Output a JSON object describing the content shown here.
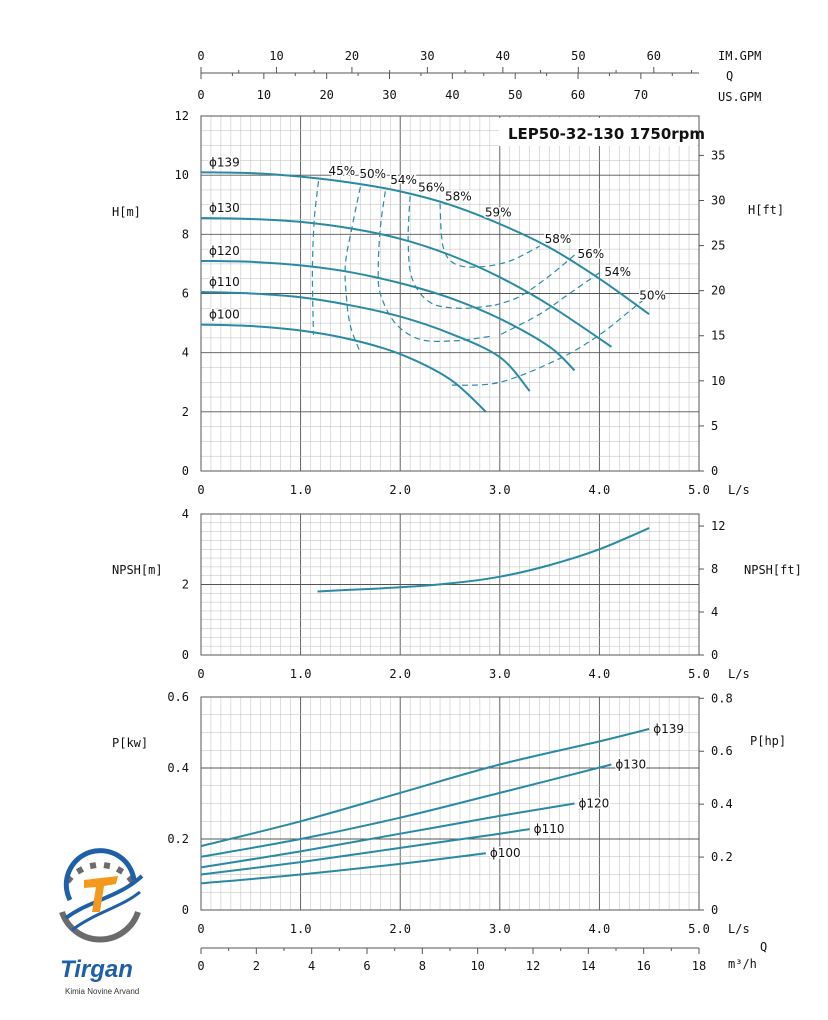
{
  "page": {
    "title": "LEP50-32-130 1750rpm"
  },
  "colors": {
    "curve": "#2a8aa3",
    "grid_major": "#555555",
    "grid_minor": "#bbbbbb",
    "text": "#111111",
    "logo_blue": "#1f5fa8",
    "logo_orange": "#f39a1e",
    "logo_gray": "#6b6b6b"
  },
  "logo": {
    "name": "Tirgan",
    "subtitle": "Kimia Novine Arvand",
    "icon": "gear-wave-logo-icon"
  },
  "top_axes": {
    "im_gpm": {
      "label": "IM.GPM",
      "ticks": [
        "0",
        "10",
        "20",
        "30",
        "40",
        "50",
        "60"
      ]
    },
    "q_label": "Q",
    "us_gpm": {
      "label": "US.GPM",
      "ticks": [
        "0",
        "10",
        "20",
        "30",
        "40",
        "50",
        "60",
        "70"
      ]
    }
  },
  "bottom_axes": {
    "ls": {
      "label": "L/s",
      "ticks": [
        "0",
        "1.0",
        "2.0",
        "3.0",
        "4.0",
        "5.0"
      ]
    },
    "q_label": "Q",
    "m3h": {
      "label": "m³/h",
      "ticks": [
        "0",
        "2",
        "4",
        "6",
        "8",
        "10",
        "12",
        "14",
        "16",
        "18"
      ]
    }
  },
  "chart_data": [
    {
      "type": "line",
      "title": "LEP50-32-130 1750rpm",
      "xlabel": "L/s",
      "ylabel": "H[m]",
      "ylabel_right": "H[ft]",
      "xlim": [
        0,
        5
      ],
      "ylim": [
        0,
        12
      ],
      "ylim_right": [
        0,
        39.37
      ],
      "xticks": [
        "0",
        "1.0",
        "2.0",
        "3.0",
        "4.0",
        "5.0"
      ],
      "yticks": [
        "0",
        "2",
        "4",
        "6",
        "8",
        "10",
        "12"
      ],
      "yticks_right": [
        "0",
        "5",
        "10",
        "15",
        "20",
        "25",
        "30",
        "35"
      ],
      "grid": true,
      "series": [
        {
          "name": "ϕ139",
          "x": [
            0,
            0.5,
            1.0,
            1.5,
            2.0,
            2.5,
            3.0,
            3.5,
            4.0,
            4.5
          ],
          "y": [
            10.1,
            10.07,
            9.95,
            9.75,
            9.45,
            9.0,
            8.35,
            7.55,
            6.5,
            5.3
          ]
        },
        {
          "name": "ϕ130",
          "x": [
            0,
            0.5,
            1.0,
            1.5,
            2.0,
            2.5,
            3.0,
            3.5,
            4.12
          ],
          "y": [
            8.55,
            8.52,
            8.42,
            8.2,
            7.85,
            7.3,
            6.55,
            5.6,
            4.2
          ]
        },
        {
          "name": "ϕ120",
          "x": [
            0,
            0.5,
            1.0,
            1.5,
            2.0,
            2.5,
            3.0,
            3.5,
            3.75
          ],
          "y": [
            7.1,
            7.07,
            6.95,
            6.72,
            6.35,
            5.85,
            5.15,
            4.2,
            3.4
          ]
        },
        {
          "name": "ϕ110",
          "x": [
            0,
            0.5,
            1.0,
            1.5,
            2.0,
            2.5,
            3.0,
            3.3
          ],
          "y": [
            6.05,
            6.0,
            5.87,
            5.6,
            5.22,
            4.65,
            3.85,
            2.7
          ]
        },
        {
          "name": "ϕ100",
          "x": [
            0,
            0.5,
            1.0,
            1.5,
            2.0,
            2.5,
            2.86
          ],
          "y": [
            4.95,
            4.9,
            4.75,
            4.45,
            3.95,
            3.1,
            2.0
          ]
        }
      ],
      "efficiency_curves": [
        {
          "name": "45%",
          "x": [
            1.18,
            1.14,
            1.12,
            1.12,
            1.13
          ],
          "y": [
            9.8,
            8.6,
            7.2,
            6.0,
            4.6
          ]
        },
        {
          "name": "50%",
          "x": [
            1.6,
            1.52,
            1.45,
            1.46,
            1.5,
            1.6
          ],
          "y": [
            9.6,
            8.3,
            7.0,
            5.9,
            4.9,
            4.0
          ]
        },
        {
          "name": "50%",
          "x": [
            4.45,
            4.3,
            4.0,
            3.6,
            3.0,
            2.5
          ],
          "y": [
            5.8,
            5.4,
            4.6,
            3.8,
            3.0,
            2.9
          ]
        },
        {
          "name": "54%",
          "x": [
            1.85,
            1.8,
            1.78,
            1.8,
            1.95,
            2.2,
            2.55,
            2.9
          ],
          "y": [
            9.45,
            8.2,
            6.9,
            6.0,
            5.0,
            4.45,
            4.4,
            4.55
          ]
        },
        {
          "name": "54%",
          "x": [
            4.0,
            3.7,
            3.4,
            3.0
          ],
          "y": [
            6.7,
            6.0,
            5.3,
            4.6
          ]
        },
        {
          "name": "56%",
          "x": [
            2.1,
            2.08,
            2.12,
            2.3,
            2.6,
            2.95
          ],
          "y": [
            9.3,
            7.8,
            6.5,
            5.7,
            5.5,
            5.6
          ]
        },
        {
          "name": "56%",
          "x": [
            3.75,
            3.5,
            3.2,
            2.95
          ],
          "y": [
            7.3,
            6.6,
            5.9,
            5.6
          ]
        },
        {
          "name": "58%",
          "x": [
            2.4,
            2.43,
            2.55,
            2.8,
            3.1,
            3.4
          ],
          "y": [
            9.05,
            7.6,
            7.0,
            6.9,
            7.1,
            7.6
          ]
        }
      ],
      "annotations": [
        {
          "text": "ϕ139",
          "x": 0.08,
          "y": 10.3
        },
        {
          "text": "ϕ130",
          "x": 0.08,
          "y": 8.75
        },
        {
          "text": "ϕ120",
          "x": 0.08,
          "y": 7.3
        },
        {
          "text": "ϕ110",
          "x": 0.08,
          "y": 6.25
        },
        {
          "text": "ϕ100",
          "x": 0.08,
          "y": 5.15
        },
        {
          "text": "45%",
          "x": 1.28,
          "y": 10.0
        },
        {
          "text": "50%",
          "x": 1.59,
          "y": 9.9
        },
        {
          "text": "54%",
          "x": 1.9,
          "y": 9.7
        },
        {
          "text": "56%",
          "x": 2.18,
          "y": 9.45
        },
        {
          "text": "58%",
          "x": 2.45,
          "y": 9.15
        },
        {
          "text": "59%",
          "x": 2.85,
          "y": 8.6
        },
        {
          "text": "58%",
          "x": 3.45,
          "y": 7.7
        },
        {
          "text": "56%",
          "x": 3.78,
          "y": 7.2
        },
        {
          "text": "54%",
          "x": 4.05,
          "y": 6.6
        },
        {
          "text": "50%",
          "x": 4.4,
          "y": 5.8
        }
      ]
    },
    {
      "type": "line",
      "xlabel": "L/s",
      "ylabel": "NPSH[m]",
      "ylabel_right": "NPSH[ft]",
      "xlim": [
        0,
        5
      ],
      "ylim": [
        0,
        4
      ],
      "ylim_right": [
        0,
        13.12
      ],
      "xticks": [
        "0",
        "1.0",
        "2.0",
        "3.0",
        "4.0",
        "5.0"
      ],
      "yticks": [
        "0",
        "2",
        "4"
      ],
      "yticks_right": [
        "0",
        "4",
        "8",
        "12"
      ],
      "grid": true,
      "series": [
        {
          "name": "NPSH",
          "x": [
            1.17,
            1.5,
            2.0,
            2.5,
            3.0,
            3.5,
            4.0,
            4.5
          ],
          "y": [
            1.8,
            1.85,
            1.92,
            2.03,
            2.22,
            2.55,
            3.0,
            3.6
          ]
        }
      ]
    },
    {
      "type": "line",
      "xlabel": "L/s",
      "ylabel": "P[kw]",
      "ylabel_right": "P[hp]",
      "xlim": [
        0,
        5
      ],
      "ylim": [
        0,
        0.6
      ],
      "ylim_right": [
        0,
        0.805
      ],
      "xticks": [
        "0",
        "1.0",
        "2.0",
        "3.0",
        "4.0",
        "5.0"
      ],
      "yticks": [
        "0",
        "0.2",
        "0.4",
        "0.6"
      ],
      "yticks_right": [
        "0",
        "0.2",
        "0.4",
        "0.6",
        "0.8"
      ],
      "grid": true,
      "series": [
        {
          "name": "ϕ139",
          "x": [
            0,
            1,
            2,
            3,
            4,
            4.5
          ],
          "y": [
            0.18,
            0.25,
            0.33,
            0.41,
            0.475,
            0.51
          ]
        },
        {
          "name": "ϕ130",
          "x": [
            0,
            1,
            2,
            3,
            4.12
          ],
          "y": [
            0.15,
            0.2,
            0.26,
            0.33,
            0.41
          ]
        },
        {
          "name": "ϕ120",
          "x": [
            0,
            1,
            2,
            3,
            3.75
          ],
          "y": [
            0.12,
            0.165,
            0.215,
            0.265,
            0.3
          ]
        },
        {
          "name": "ϕ110",
          "x": [
            0,
            1,
            2,
            3,
            3.3
          ],
          "y": [
            0.1,
            0.135,
            0.175,
            0.215,
            0.228
          ]
        },
        {
          "name": "ϕ100",
          "x": [
            0,
            1,
            2,
            2.86
          ],
          "y": [
            0.075,
            0.1,
            0.13,
            0.16
          ]
        }
      ]
    }
  ]
}
